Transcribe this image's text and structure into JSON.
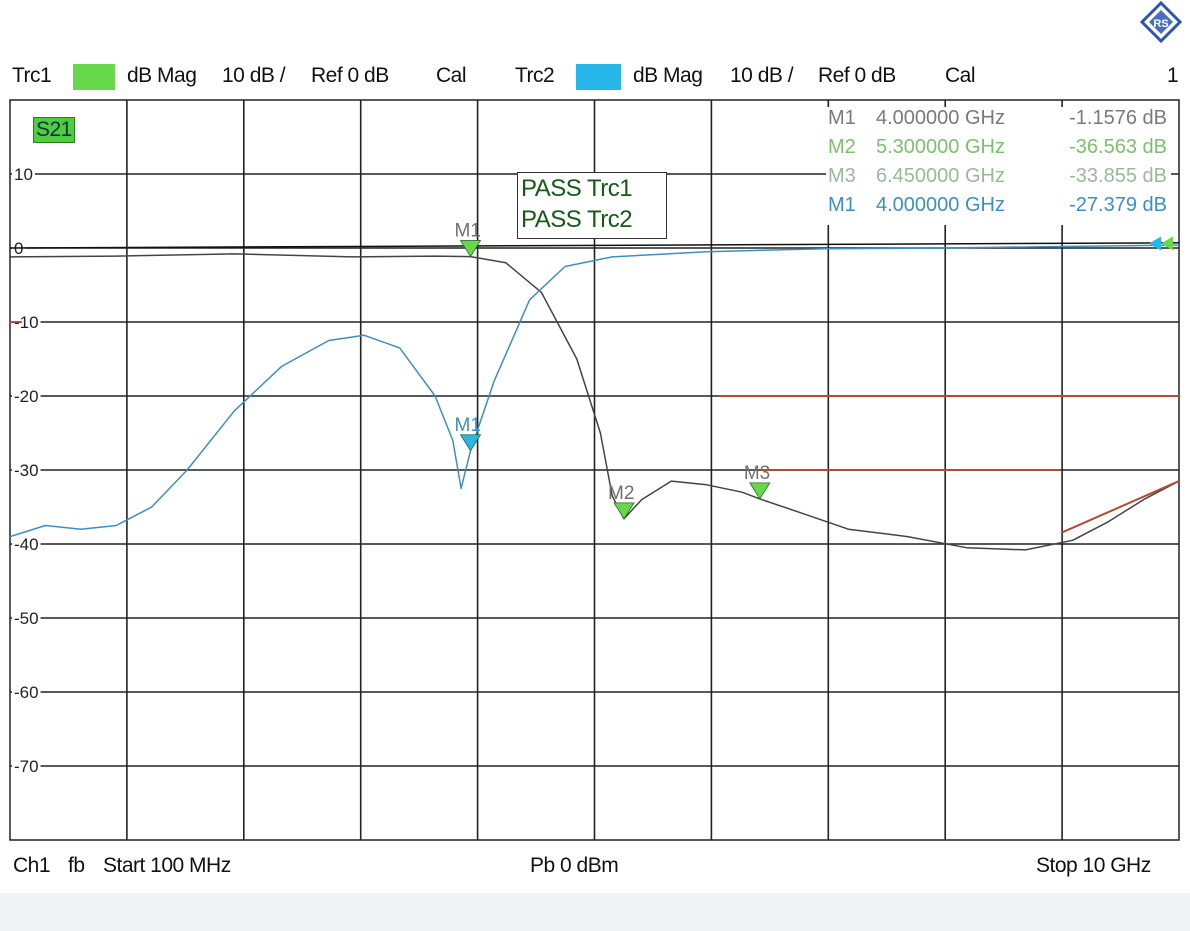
{
  "header": {
    "trace1": {
      "label": "Trc1",
      "format": "dB Mag",
      "scale": "10 dB /",
      "ref": "Ref 0 dB",
      "cal": "Cal",
      "color": "#66d84a"
    },
    "trace2": {
      "label": "Trc2",
      "format": "dB Mag",
      "scale": "10 dB /",
      "ref": "Ref 0 dB",
      "cal": "Cal",
      "color": "#27b6ea"
    },
    "window_number": "1"
  },
  "footer": {
    "channel": "Ch1",
    "sweep": "fb",
    "start": "Start  100 MHz",
    "power": "Pb   0 dBm",
    "stop": "Stop  10 GHz"
  },
  "overlay": {
    "active_param": "S21",
    "limit_pass": [
      "PASS Trc1",
      "PASS Trc2"
    ]
  },
  "markers_table": [
    {
      "name": "M1",
      "freq": "4.000000 GHz",
      "value": "-1.1576 dB",
      "trace": "Trc1",
      "color": "#7bc06c"
    },
    {
      "name": "M2",
      "freq": "5.300000 GHz",
      "value": "-36.563 dB",
      "trace": "Trc1",
      "color": "#7bc06c"
    },
    {
      "name": "M3",
      "freq": "6.450000 GHz",
      "value": "-33.855 dB",
      "trace": "Trc1",
      "color": "#7bc06c"
    },
    {
      "name": "M1",
      "freq": "4.000000 GHz",
      "value": "-27.379 dB",
      "trace": "Trc2",
      "color": "#3c8fc0"
    }
  ],
  "chart_data": {
    "type": "line",
    "x_unit": "GHz",
    "y_unit": "dB",
    "xlim": [
      0.1,
      10
    ],
    "ylim": [
      -80,
      20
    ],
    "grid": true,
    "yticks": [
      10,
      0,
      -10,
      -20,
      -30,
      -40,
      -50,
      -60,
      -70
    ],
    "series": [
      {
        "name": "Trc1",
        "color": "#444444",
        "points": [
          [
            0.1,
            -1.2
          ],
          [
            1.0,
            -1.1
          ],
          [
            2.0,
            -0.8
          ],
          [
            3.0,
            -1.2
          ],
          [
            3.7,
            -1.1
          ],
          [
            4.0,
            -1.16
          ],
          [
            4.3,
            -2.0
          ],
          [
            4.6,
            -6.0
          ],
          [
            4.9,
            -15.0
          ],
          [
            5.1,
            -25.0
          ],
          [
            5.2,
            -33.5
          ],
          [
            5.3,
            -36.6
          ],
          [
            5.45,
            -34.0
          ],
          [
            5.7,
            -31.5
          ],
          [
            6.0,
            -32.0
          ],
          [
            6.3,
            -33.0
          ],
          [
            6.45,
            -33.9
          ],
          [
            6.8,
            -35.8
          ],
          [
            7.2,
            -38.0
          ],
          [
            7.7,
            -39.0
          ],
          [
            8.2,
            -40.5
          ],
          [
            8.7,
            -40.8
          ],
          [
            9.1,
            -39.5
          ],
          [
            9.4,
            -37.0
          ],
          [
            9.7,
            -34.0
          ],
          [
            10.0,
            -31.5
          ]
        ]
      },
      {
        "name": "Trc2",
        "color": "#3c8fc0",
        "points": [
          [
            0.1,
            -39.0
          ],
          [
            0.4,
            -37.5
          ],
          [
            0.7,
            -38.0
          ],
          [
            1.0,
            -37.5
          ],
          [
            1.3,
            -35.0
          ],
          [
            1.6,
            -30.0
          ],
          [
            2.0,
            -22.0
          ],
          [
            2.4,
            -16.0
          ],
          [
            2.8,
            -12.5
          ],
          [
            3.1,
            -11.8
          ],
          [
            3.4,
            -13.5
          ],
          [
            3.7,
            -20.0
          ],
          [
            3.85,
            -26.0
          ],
          [
            3.92,
            -32.5
          ],
          [
            4.0,
            -27.4
          ],
          [
            4.2,
            -18.0
          ],
          [
            4.5,
            -7.0
          ],
          [
            4.8,
            -2.5
          ],
          [
            5.2,
            -1.2
          ],
          [
            6.0,
            -0.5
          ],
          [
            7.0,
            -0.1
          ],
          [
            8.0,
            0.0
          ],
          [
            9.0,
            0.2
          ],
          [
            10.0,
            0.4
          ]
        ]
      },
      {
        "name": "Limit line -10 dB",
        "color": "#b24a36",
        "points": [
          [
            0.1,
            -10
          ],
          [
            0.2,
            -10
          ]
        ]
      },
      {
        "name": "Limit line -20 dB",
        "color": "#b24a36",
        "points": [
          [
            6.1,
            -20
          ],
          [
            10,
            -20
          ]
        ]
      },
      {
        "name": "Limit line -30 dB",
        "color": "#b24a36",
        "points": [
          [
            6.45,
            -30
          ],
          [
            9.0,
            -30
          ]
        ]
      },
      {
        "name": "Limit line ramp",
        "color": "#b24a36",
        "points": [
          [
            9.0,
            -38.5
          ],
          [
            10.0,
            -31.5
          ]
        ]
      },
      {
        "name": "Reference 0 dB",
        "color": "#111111",
        "points": [
          [
            0.1,
            0
          ],
          [
            10,
            0.7
          ]
        ]
      }
    ],
    "markers": [
      {
        "label": "M1",
        "trace": "Trc1",
        "x": 4.0,
        "y": -1.16,
        "color": "#66d84a"
      },
      {
        "label": "M2",
        "trace": "Trc1",
        "x": 5.3,
        "y": -36.6,
        "color": "#66d84a"
      },
      {
        "label": "M3",
        "trace": "Trc1",
        "x": 6.45,
        "y": -33.9,
        "color": "#66d84a"
      },
      {
        "label": "M1",
        "trace": "Trc2",
        "x": 4.0,
        "y": -27.4,
        "color": "#27b6ea"
      }
    ]
  }
}
